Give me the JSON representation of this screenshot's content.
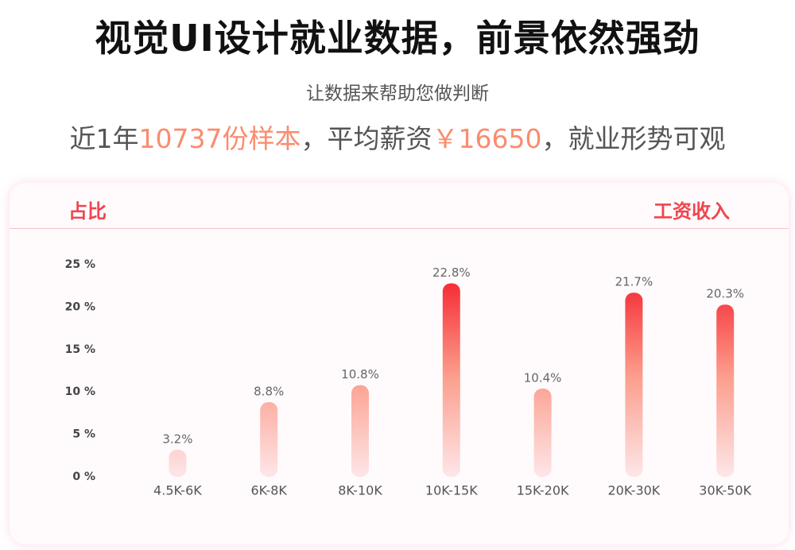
{
  "header": {
    "title": "视觉UI设计就业数据，前景依然强劲",
    "subtitle": "让数据来帮助您做判断",
    "summary": [
      "近1年",
      "10737份样本",
      "，平均薪资",
      "￥16650",
      "，就业形势可观"
    ]
  },
  "card": {
    "left_label": "占比",
    "right_label": "工资收入"
  },
  "chart_data": {
    "type": "bar",
    "color": "#f5222d",
    "categories": [
      "4.5K-6K",
      "6K-8K",
      "8K-10K",
      "10K-15K",
      "15K-20K",
      "20K-30K",
      "30K-50K"
    ],
    "values": [
      3.2,
      8.8,
      10.8,
      22.8,
      10.4,
      21.7,
      20.3
    ],
    "value_labels": [
      "3.2%",
      "8.8%",
      "10.8%",
      "22.8%",
      "10.4%",
      "21.7%",
      "20.3%"
    ],
    "ylim": [
      0,
      25
    ],
    "yticks": [
      {
        "value": 0,
        "label": "0 %"
      },
      {
        "value": 5,
        "label": "5 %"
      },
      {
        "value": 10,
        "label": "10 %"
      },
      {
        "value": 15,
        "label": "15 %"
      },
      {
        "value": 20,
        "label": "20 %"
      },
      {
        "value": 25,
        "label": "25 %"
      }
    ],
    "grid": false
  }
}
